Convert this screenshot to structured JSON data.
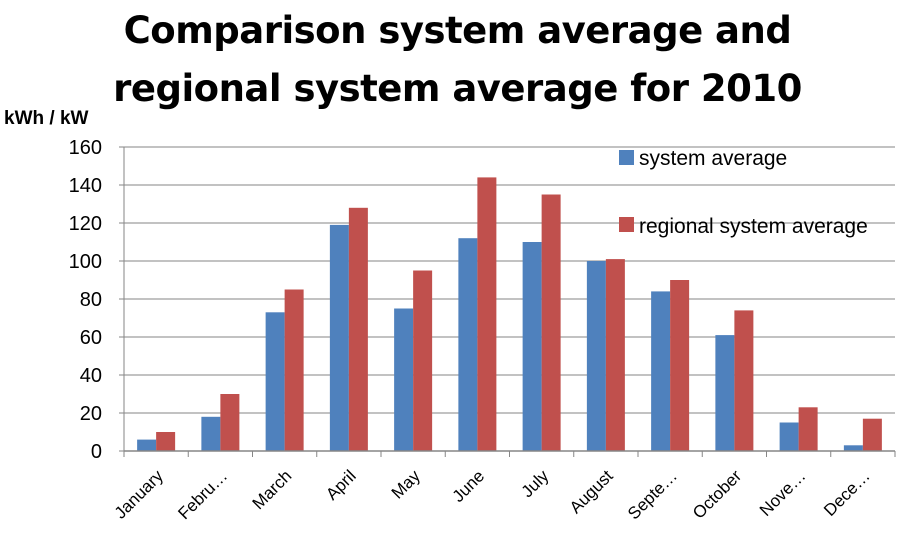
{
  "chart_data": {
    "type": "bar",
    "title_line1": "Comparison system average and",
    "title_line2": "regional system average for 2010",
    "ylabel": "kWh / kW",
    "xlabel": "",
    "ylim": [
      0,
      160
    ],
    "yticks": [
      0,
      20,
      40,
      60,
      80,
      100,
      120,
      140,
      160
    ],
    "categories": [
      "January",
      "Febru…",
      "March",
      "April",
      "May",
      "June",
      "July",
      "August",
      "Septe…",
      "October",
      "Nove…",
      "Dece…"
    ],
    "series": [
      {
        "name": "system average",
        "color": "#4F81BD",
        "values": [
          6,
          18,
          73,
          119,
          75,
          112,
          110,
          100,
          84,
          61,
          15,
          3
        ]
      },
      {
        "name": "regional system average",
        "color": "#C0504D",
        "values": [
          10,
          30,
          85,
          128,
          95,
          144,
          135,
          101,
          90,
          74,
          23,
          17
        ]
      }
    ],
    "grid": true,
    "legend_position": "top-right"
  }
}
